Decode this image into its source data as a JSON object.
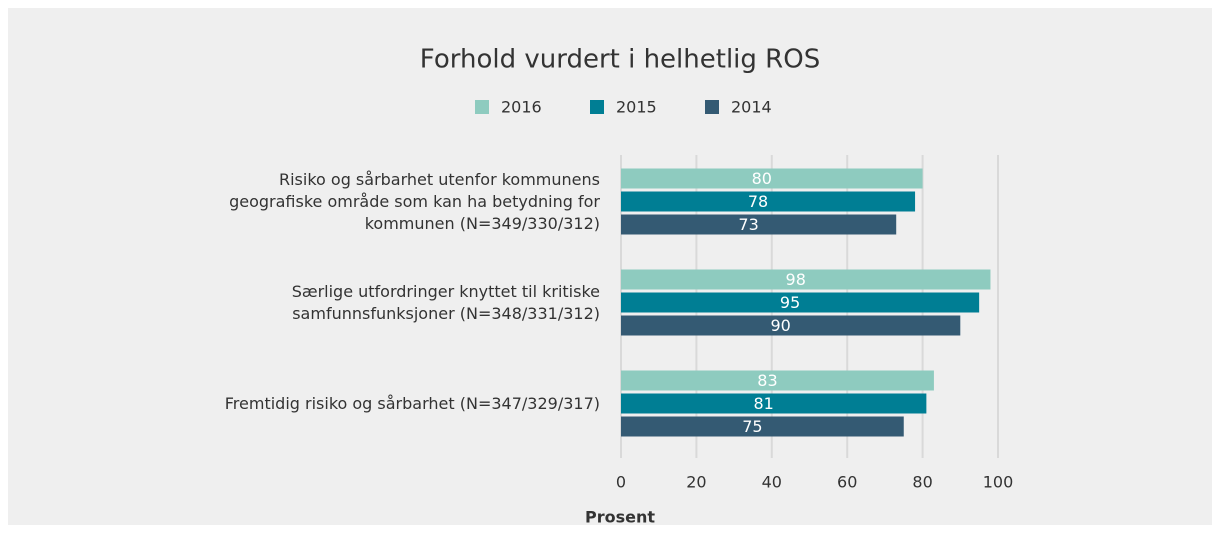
{
  "chart_data": {
    "type": "barh",
    "title": "Forhold vurdert i helhetlig ROS",
    "categories": [
      "Risiko og sårbarhet utenfor kommunens geografiske område som kan ha betydning for kommunen (N=349/330/312)",
      "Særlige utfordringer knyttet til kritiske samfunnsfunksjoner (N=348/331/312)",
      "Fremtidig risiko og sårbarhet (N=347/329/317)"
    ],
    "series": [
      {
        "name": "2016",
        "color": "#8ecbbf",
        "values": [
          80,
          98,
          83
        ]
      },
      {
        "name": "2015",
        "color": "#007e94",
        "values": [
          78,
          95,
          81
        ]
      },
      {
        "name": "2014",
        "color": "#345a73",
        "values": [
          73,
          90,
          75
        ]
      }
    ],
    "xlim": [
      0,
      100
    ],
    "xticks": [
      0,
      20,
      40,
      60,
      80,
      100
    ],
    "xlabel": "Prosent",
    "grid": true,
    "legend": "top"
  }
}
